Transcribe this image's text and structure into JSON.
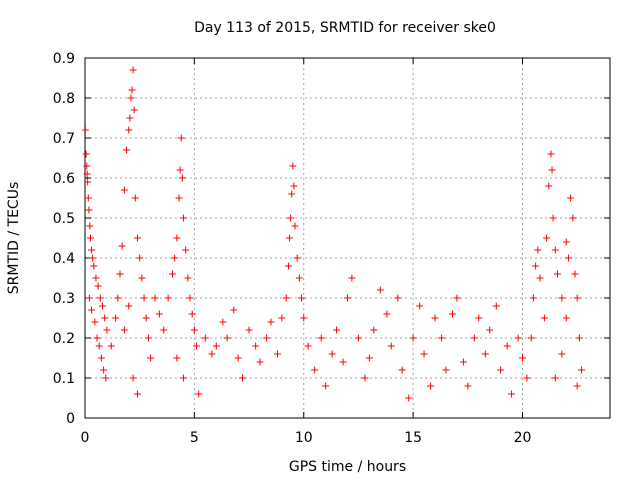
{
  "chart_data": {
    "type": "scatter",
    "title": "Day 113 of 2015, SRMTID for receiver ske0",
    "xlabel": "GPS time / hours",
    "ylabel": "SRMTID / TECUs",
    "xlim": [
      0,
      24
    ],
    "ylim": [
      0,
      0.9
    ],
    "xticks": [
      0,
      5,
      10,
      15,
      20
    ],
    "xtick_labels": [
      "0",
      "5",
      "10",
      "15",
      "20"
    ],
    "yticks": [
      0,
      0.1,
      0.2,
      0.3,
      0.4,
      0.5,
      0.6,
      0.7,
      0.8,
      0.9
    ],
    "ytick_labels": [
      "0",
      "0.1",
      "0.2",
      "0.3",
      "0.4",
      "0.5",
      "0.6",
      "0.7",
      "0.8",
      "0.9"
    ],
    "grid": true,
    "marker": "+",
    "series": [
      {
        "name": "SRMTID",
        "color": "#ff0000",
        "points": [
          [
            0.02,
            0.72
          ],
          [
            0.05,
            0.66
          ],
          [
            0.08,
            0.63
          ],
          [
            0.1,
            0.61
          ],
          [
            0.12,
            0.59
          ],
          [
            0.15,
            0.55
          ],
          [
            0.18,
            0.52
          ],
          [
            0.22,
            0.48
          ],
          [
            0.25,
            0.45
          ],
          [
            0.3,
            0.42
          ],
          [
            0.35,
            0.4
          ],
          [
            0.4,
            0.38
          ],
          [
            0.5,
            0.35
          ],
          [
            0.6,
            0.33
          ],
          [
            0.7,
            0.3
          ],
          [
            0.8,
            0.28
          ],
          [
            0.9,
            0.25
          ],
          [
            1.0,
            0.22
          ],
          [
            0.2,
            0.3
          ],
          [
            0.3,
            0.27
          ],
          [
            0.45,
            0.24
          ],
          [
            0.55,
            0.2
          ],
          [
            0.65,
            0.18
          ],
          [
            0.75,
            0.15
          ],
          [
            0.85,
            0.12
          ],
          [
            0.95,
            0.1
          ],
          [
            1.2,
            0.18
          ],
          [
            1.4,
            0.25
          ],
          [
            1.5,
            0.3
          ],
          [
            1.6,
            0.36
          ],
          [
            1.7,
            0.43
          ],
          [
            1.8,
            0.57
          ],
          [
            1.9,
            0.67
          ],
          [
            2.0,
            0.72
          ],
          [
            2.05,
            0.75
          ],
          [
            2.1,
            0.8
          ],
          [
            2.15,
            0.82
          ],
          [
            2.2,
            0.87
          ],
          [
            2.25,
            0.77
          ],
          [
            2.3,
            0.55
          ],
          [
            2.4,
            0.45
          ],
          [
            2.5,
            0.4
          ],
          [
            2.6,
            0.35
          ],
          [
            2.7,
            0.3
          ],
          [
            2.8,
            0.25
          ],
          [
            2.9,
            0.2
          ],
          [
            3.0,
            0.15
          ],
          [
            2.2,
            0.1
          ],
          [
            2.4,
            0.06
          ],
          [
            1.8,
            0.22
          ],
          [
            2.0,
            0.28
          ],
          [
            3.2,
            0.3
          ],
          [
            3.4,
            0.26
          ],
          [
            3.6,
            0.22
          ],
          [
            3.8,
            0.3
          ],
          [
            4.0,
            0.36
          ],
          [
            4.1,
            0.4
          ],
          [
            4.2,
            0.45
          ],
          [
            4.3,
            0.55
          ],
          [
            4.35,
            0.62
          ],
          [
            4.4,
            0.7
          ],
          [
            4.45,
            0.6
          ],
          [
            4.5,
            0.5
          ],
          [
            4.6,
            0.42
          ],
          [
            4.7,
            0.35
          ],
          [
            4.8,
            0.3
          ],
          [
            4.9,
            0.26
          ],
          [
            5.0,
            0.22
          ],
          [
            4.2,
            0.15
          ],
          [
            4.5,
            0.1
          ],
          [
            5.1,
            0.18
          ],
          [
            5.2,
            0.06
          ],
          [
            5.5,
            0.2
          ],
          [
            5.8,
            0.16
          ],
          [
            6.0,
            0.18
          ],
          [
            6.3,
            0.24
          ],
          [
            6.5,
            0.2
          ],
          [
            6.8,
            0.27
          ],
          [
            7.0,
            0.15
          ],
          [
            7.2,
            0.1
          ],
          [
            7.5,
            0.22
          ],
          [
            7.8,
            0.18
          ],
          [
            8.0,
            0.14
          ],
          [
            8.3,
            0.2
          ],
          [
            8.5,
            0.24
          ],
          [
            8.8,
            0.16
          ],
          [
            9.0,
            0.25
          ],
          [
            9.2,
            0.3
          ],
          [
            9.3,
            0.38
          ],
          [
            9.35,
            0.45
          ],
          [
            9.4,
            0.5
          ],
          [
            9.45,
            0.56
          ],
          [
            9.5,
            0.63
          ],
          [
            9.55,
            0.58
          ],
          [
            9.6,
            0.48
          ],
          [
            9.7,
            0.4
          ],
          [
            9.8,
            0.35
          ],
          [
            9.9,
            0.3
          ],
          [
            10.0,
            0.25
          ],
          [
            10.2,
            0.18
          ],
          [
            10.5,
            0.12
          ],
          [
            10.8,
            0.2
          ],
          [
            11.0,
            0.08
          ],
          [
            11.3,
            0.16
          ],
          [
            11.5,
            0.22
          ],
          [
            11.8,
            0.14
          ],
          [
            12.0,
            0.3
          ],
          [
            12.2,
            0.35
          ],
          [
            12.5,
            0.2
          ],
          [
            12.8,
            0.1
          ],
          [
            13.0,
            0.15
          ],
          [
            13.2,
            0.22
          ],
          [
            13.5,
            0.32
          ],
          [
            13.8,
            0.26
          ],
          [
            14.0,
            0.18
          ],
          [
            14.3,
            0.3
          ],
          [
            14.5,
            0.12
          ],
          [
            14.8,
            0.05
          ],
          [
            15.0,
            0.2
          ],
          [
            15.3,
            0.28
          ],
          [
            15.5,
            0.16
          ],
          [
            15.8,
            0.08
          ],
          [
            16.0,
            0.25
          ],
          [
            16.3,
            0.2
          ],
          [
            16.5,
            0.12
          ],
          [
            16.8,
            0.26
          ],
          [
            17.0,
            0.3
          ],
          [
            17.3,
            0.14
          ],
          [
            17.5,
            0.08
          ],
          [
            17.8,
            0.2
          ],
          [
            18.0,
            0.25
          ],
          [
            18.3,
            0.16
          ],
          [
            18.5,
            0.22
          ],
          [
            18.8,
            0.28
          ],
          [
            19.0,
            0.12
          ],
          [
            19.3,
            0.18
          ],
          [
            19.5,
            0.06
          ],
          [
            19.8,
            0.2
          ],
          [
            20.0,
            0.15
          ],
          [
            20.2,
            0.1
          ],
          [
            20.4,
            0.2
          ],
          [
            20.5,
            0.3
          ],
          [
            20.6,
            0.38
          ],
          [
            20.7,
            0.42
          ],
          [
            20.8,
            0.35
          ],
          [
            21.0,
            0.25
          ],
          [
            21.1,
            0.45
          ],
          [
            21.2,
            0.58
          ],
          [
            21.3,
            0.66
          ],
          [
            21.35,
            0.62
          ],
          [
            21.4,
            0.5
          ],
          [
            21.5,
            0.42
          ],
          [
            21.6,
            0.36
          ],
          [
            21.8,
            0.3
          ],
          [
            22.0,
            0.44
          ],
          [
            22.1,
            0.4
          ],
          [
            22.2,
            0.55
          ],
          [
            22.3,
            0.5
          ],
          [
            22.4,
            0.36
          ],
          [
            22.5,
            0.3
          ],
          [
            22.6,
            0.2
          ],
          [
            22.7,
            0.12
          ],
          [
            22.5,
            0.08
          ],
          [
            21.8,
            0.16
          ],
          [
            21.5,
            0.1
          ],
          [
            22.0,
            0.25
          ]
        ]
      }
    ]
  }
}
